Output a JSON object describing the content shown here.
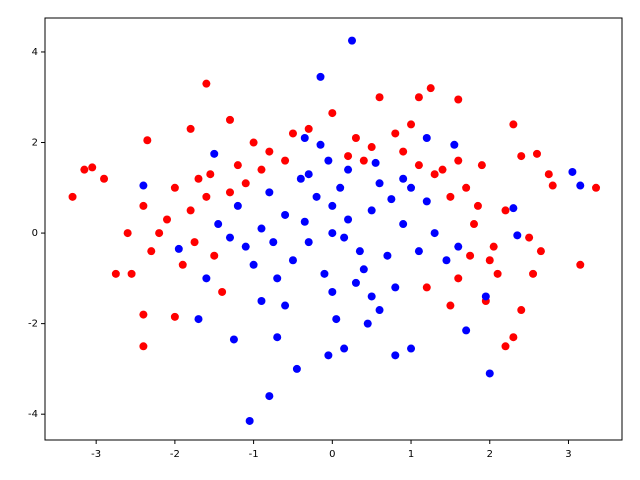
{
  "chart_data": {
    "type": "scatter",
    "xlim": [
      -3.65,
      3.68
    ],
    "ylim": [
      -4.57,
      4.75
    ],
    "xticks": [
      -3,
      -2,
      -1,
      0,
      1,
      2,
      3
    ],
    "yticks": [
      -4,
      -2,
      0,
      2,
      4
    ],
    "series": [
      {
        "color": "#ff0000",
        "x": [
          -3.3,
          -3.05,
          -3.15,
          -2.9,
          -2.75,
          -2.55,
          -2.4,
          -2.4,
          -2.35,
          -2.4,
          -2.2,
          -2.0,
          -1.6,
          -1.8,
          -1.3,
          -1.0,
          -0.5,
          0.0,
          0.6,
          1.1,
          1.25,
          1.6,
          1.0,
          1.9,
          2.3,
          2.4,
          2.6,
          2.75,
          2.8,
          3.35,
          3.15,
          2.65,
          2.4,
          2.3,
          2.2,
          1.95,
          1.5,
          -1.5,
          -1.8,
          -1.2,
          -0.8,
          0.5,
          1.3,
          1.5,
          1.8,
          2.0,
          1.6,
          -2.0,
          -1.4,
          -0.3,
          0.3,
          0.8,
          1.6,
          -1.6,
          2.2,
          -2.6,
          -1.9,
          2.5,
          1.2,
          -1.7,
          -1.1,
          -0.6,
          0.2,
          0.9,
          1.4,
          1.7,
          2.1,
          -2.1,
          -1.75,
          1.85,
          2.05,
          -1.3,
          -0.9,
          0.4,
          1.1,
          -2.3,
          2.55,
          -1.55,
          1.75
        ],
        "values": [
          0.8,
          1.45,
          1.4,
          1.2,
          -0.9,
          -0.9,
          -1.8,
          -2.5,
          2.05,
          0.6,
          0.0,
          -1.85,
          3.3,
          2.3,
          2.5,
          2.0,
          2.2,
          2.65,
          3.0,
          3.0,
          3.2,
          2.95,
          2.4,
          1.5,
          2.4,
          1.7,
          1.75,
          1.3,
          1.05,
          1.0,
          -0.7,
          -0.4,
          -1.7,
          -2.3,
          -2.5,
          -1.5,
          -1.6,
          -0.5,
          0.5,
          1.5,
          1.8,
          1.9,
          1.3,
          0.8,
          0.2,
          -0.6,
          -1.0,
          1.0,
          -1.3,
          2.3,
          2.1,
          2.2,
          1.6,
          0.8,
          0.5,
          0.0,
          -0.7,
          -0.1,
          -1.2,
          1.2,
          1.1,
          1.6,
          1.7,
          1.8,
          1.4,
          1.0,
          -0.9,
          0.3,
          -0.2,
          0.6,
          -0.3,
          0.9,
          1.4,
          1.6,
          1.5,
          -0.4,
          -0.9,
          1.3,
          -0.5
        ]
      },
      {
        "color": "#0000ff",
        "x": [
          0.25,
          -0.15,
          -0.8,
          -1.05,
          -0.45,
          2.0,
          3.05,
          3.15,
          -2.4,
          -1.5,
          1.55,
          1.2,
          -0.35,
          -0.15,
          0.55,
          2.3,
          2.35,
          -1.95,
          -1.7,
          -1.25,
          -0.7,
          0.8,
          0.15,
          1.0,
          1.7,
          1.95,
          -0.05,
          0.0,
          0.2,
          -0.3,
          0.5,
          -0.6,
          0.7,
          -0.9,
          0.9,
          -0.2,
          0.4,
          -0.5,
          0.1,
          -1.1,
          1.1,
          -0.8,
          0.6,
          -0.4,
          0.3,
          0.0,
          -1.2,
          1.2,
          -0.7,
          0.8,
          -0.1,
          0.2,
          0.5,
          -0.3,
          1.3,
          -1.3,
          0.0,
          0.6,
          -0.6,
          1.0,
          -1.0,
          0.35,
          -0.35,
          0.75,
          -0.75,
          1.45,
          -1.45,
          0.05,
          -0.05,
          0.15,
          1.6,
          -1.6,
          0.9,
          -0.9,
          0.45
        ],
        "values": [
          4.25,
          3.45,
          -3.6,
          -4.15,
          -3.0,
          -3.1,
          1.35,
          1.05,
          1.05,
          1.75,
          1.95,
          2.1,
          2.1,
          1.95,
          1.55,
          0.55,
          -0.05,
          -0.35,
          -1.9,
          -2.35,
          -2.3,
          -2.7,
          -2.55,
          -2.55,
          -2.15,
          -1.4,
          -2.7,
          0.0,
          0.3,
          -0.2,
          0.5,
          0.4,
          -0.5,
          0.1,
          0.2,
          0.8,
          -0.8,
          -0.6,
          1.0,
          -0.3,
          -0.4,
          0.9,
          1.1,
          1.2,
          -1.1,
          -1.3,
          0.6,
          0.7,
          -1.0,
          -1.2,
          -0.9,
          1.4,
          -1.4,
          1.3,
          0.0,
          -0.1,
          0.6,
          -1.7,
          -1.6,
          1.0,
          -0.7,
          -0.4,
          0.25,
          0.75,
          -0.2,
          -0.6,
          0.2,
          -1.9,
          1.6,
          -0.1,
          -0.3,
          -1.0,
          1.2,
          -1.5,
          -2.0
        ]
      }
    ]
  }
}
